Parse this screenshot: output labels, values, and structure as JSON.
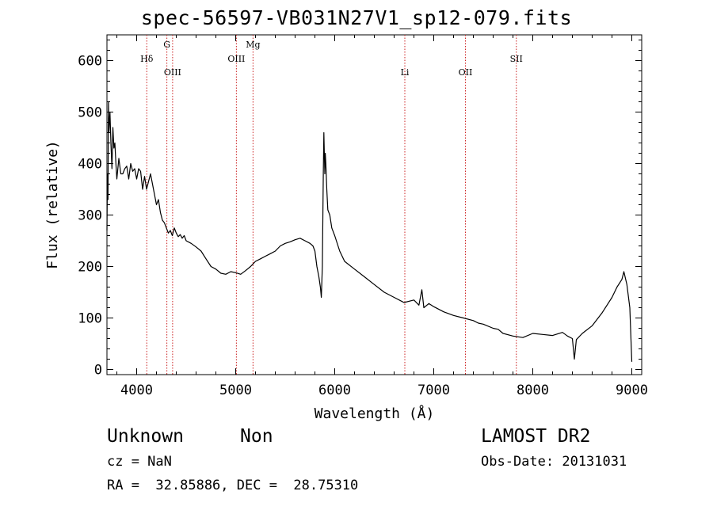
{
  "chart_data": {
    "type": "line",
    "title": "spec-56597-VB031N27V1_sp12-079.fits",
    "xlabel": "Wavelength (Å)",
    "ylabel": "Flux (relative)",
    "xlim": [
      3700,
      9100
    ],
    "ylim": [
      -10,
      650
    ],
    "xticks": [
      4000,
      5000,
      6000,
      7000,
      8000,
      9000
    ],
    "yticks": [
      0,
      100,
      200,
      300,
      400,
      500,
      600
    ],
    "series": [
      {
        "x": [
          3700,
          3705,
          3710,
          3715,
          3720,
          3730,
          3740,
          3750,
          3760,
          3770,
          3780,
          3790,
          3800,
          3820,
          3840,
          3860,
          3880,
          3900,
          3920,
          3940,
          3960,
          3980,
          4000,
          4020,
          4040,
          4060,
          4080,
          4100,
          4120,
          4140,
          4160,
          4180,
          4200,
          4220,
          4240,
          4260,
          4280,
          4300,
          4320,
          4340,
          4360,
          4380,
          4400,
          4420,
          4440,
          4460,
          4480,
          4500,
          4550,
          4600,
          4650,
          4700,
          4750,
          4800,
          4850,
          4900,
          4950,
          5000,
          5050,
          5100,
          5150,
          5200,
          5250,
          5300,
          5350,
          5400,
          5450,
          5500,
          5550,
          5600,
          5650,
          5700,
          5750,
          5780,
          5800,
          5820,
          5840,
          5855,
          5865,
          5875,
          5885,
          5890,
          5895,
          5900,
          5905,
          5910,
          5920,
          5930,
          5950,
          5970,
          6000,
          6050,
          6100,
          6200,
          6300,
          6400,
          6500,
          6600,
          6700,
          6800,
          6850,
          6880,
          6900,
          6950,
          7000,
          7100,
          7200,
          7300,
          7400,
          7450,
          7500,
          7600,
          7650,
          7700,
          7800,
          7900,
          8000,
          8100,
          8200,
          8300,
          8350,
          8400,
          8420,
          8440,
          8500,
          8600,
          8700,
          8800,
          8850,
          8900,
          8920,
          8950,
          8980,
          9000
        ],
        "y": [
          270,
          380,
          330,
          520,
          460,
          500,
          440,
          390,
          470,
          430,
          440,
          400,
          370,
          410,
          380,
          380,
          390,
          395,
          370,
          400,
          385,
          390,
          370,
          390,
          385,
          350,
          375,
          350,
          365,
          380,
          360,
          340,
          320,
          330,
          305,
          290,
          285,
          275,
          265,
          270,
          260,
          275,
          265,
          258,
          262,
          255,
          260,
          250,
          245,
          238,
          230,
          215,
          200,
          195,
          187,
          185,
          190,
          188,
          185,
          192,
          200,
          210,
          215,
          220,
          225,
          230,
          240,
          245,
          248,
          252,
          255,
          250,
          245,
          240,
          230,
          200,
          180,
          160,
          140,
          200,
          380,
          460,
          420,
          380,
          420,
          400,
          350,
          310,
          300,
          275,
          260,
          230,
          210,
          195,
          180,
          165,
          150,
          140,
          130,
          135,
          125,
          155,
          120,
          128,
          122,
          112,
          105,
          100,
          95,
          90,
          88,
          80,
          78,
          70,
          65,
          62,
          70,
          68,
          66,
          72,
          65,
          60,
          20,
          58,
          70,
          85,
          110,
          140,
          160,
          175,
          190,
          165,
          120,
          15
        ]
      }
    ],
    "line_markers": [
      {
        "label": "Hδ",
        "x": 4102,
        "label_row": 1
      },
      {
        "label": "G",
        "x": 4305,
        "label_row": 0
      },
      {
        "label": "OIII",
        "x": 4363,
        "label_row": 2
      },
      {
        "label": "OIII",
        "x": 5007,
        "label_row": 1
      },
      {
        "label": "Mg",
        "x": 5175,
        "label_row": 0
      },
      {
        "label": "Li",
        "x": 6708,
        "label_row": 2
      },
      {
        "label": "OII",
        "x": 7320,
        "label_row": 2
      },
      {
        "label": "SII",
        "x": 7834,
        "label_row": 1
      }
    ],
    "marker_color": "#cc2222",
    "grid": false
  },
  "info": {
    "class": "Unknown",
    "subclass": "Non",
    "survey": "LAMOST DR2",
    "redshift": "cz = NaN",
    "obs_date": "Obs-Date: 20131031",
    "coords": "RA =  32.85886, DEC =  28.75310"
  }
}
